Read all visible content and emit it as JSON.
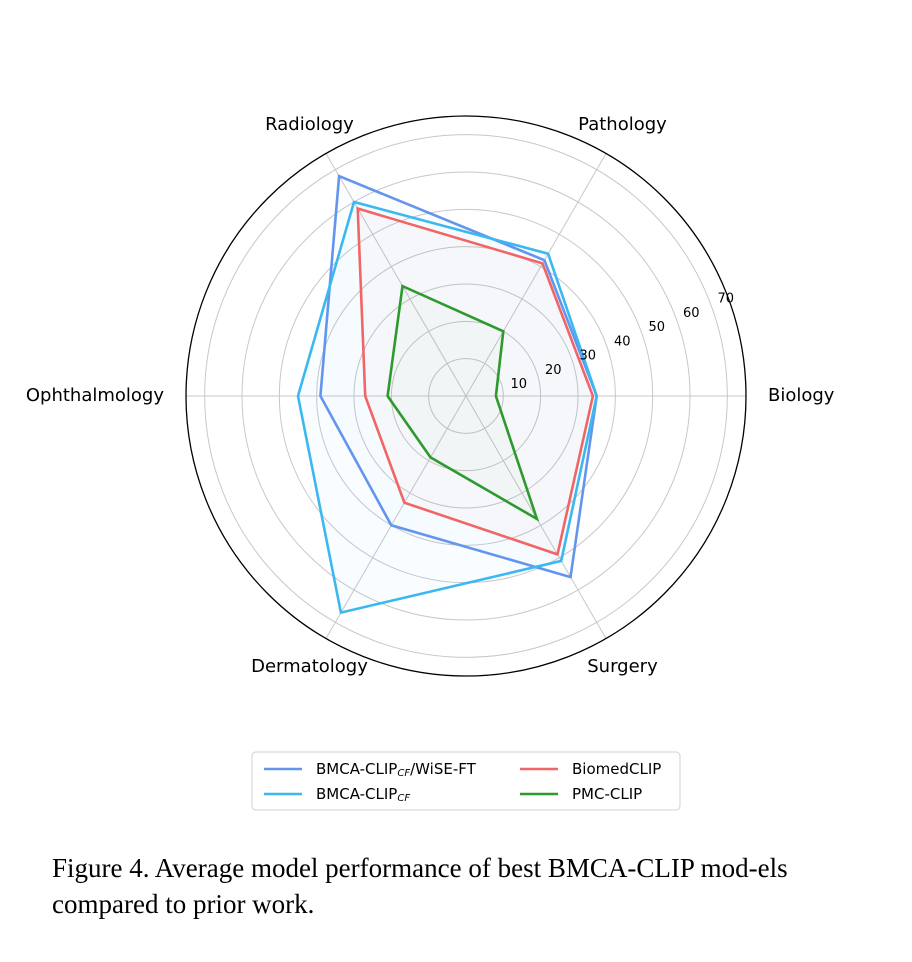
{
  "chart_data": {
    "type": "radar",
    "axes": [
      "Biology",
      "Pathology",
      "Radiology",
      "Ophthalmology",
      "Dermatology",
      "Surgery"
    ],
    "rlim": [
      0,
      75
    ],
    "rticks": [
      10,
      20,
      30,
      40,
      50,
      60,
      70
    ],
    "rtick_labels": [
      "10",
      "20",
      "30",
      "40",
      "50",
      "60",
      "70"
    ],
    "grid": true,
    "legend_location": "bottom-center",
    "series": [
      {
        "name": "BMCA-CLIP",
        "name_sub": "CF",
        "name_suffix": "/WiSE-FT",
        "color": "#6495ED",
        "values": [
          35,
          42,
          68,
          39,
          40,
          56
        ]
      },
      {
        "name": "BMCA-CLIP",
        "name_sub": "CF",
        "name_suffix": "",
        "color": "#3BB8F0",
        "values": [
          35,
          44,
          60,
          45,
          67,
          51
        ]
      },
      {
        "name": "BiomedCLIP",
        "name_sub": "",
        "name_suffix": "",
        "color": "#F06666",
        "values": [
          34,
          41,
          58,
          27,
          33,
          49
        ]
      },
      {
        "name": "PMC-CLIP",
        "name_sub": "",
        "name_suffix": "",
        "color": "#2E9A2E",
        "values": [
          8,
          20,
          34,
          21,
          19,
          38
        ]
      }
    ]
  },
  "caption": "Figure 4. Average model performance of best BMCA-CLIP mod-els compared to prior work."
}
